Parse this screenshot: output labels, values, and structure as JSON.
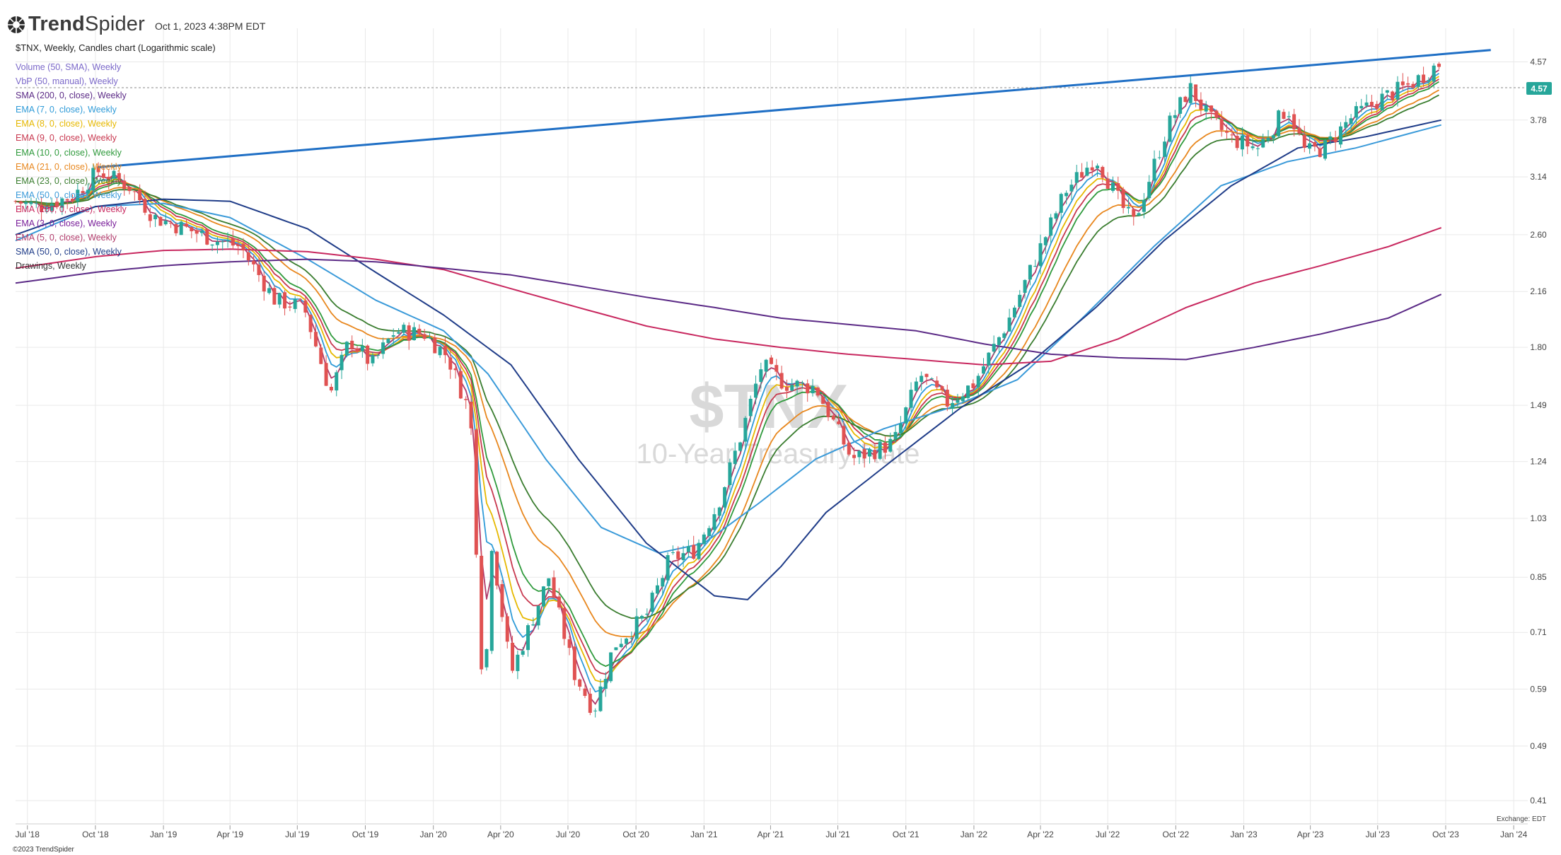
{
  "app": {
    "name_part1": "Trend",
    "name_part2": "Spider",
    "timestamp": "Oct 1, 2023 4:38PM EDT"
  },
  "chart_title": "$TNX, Weekly, Candles chart (Logarithmic scale)",
  "watermark": {
    "symbol": "$TNX",
    "name": "10-Year Treasury Rate"
  },
  "indicators": [
    {
      "label": "Volume (50, SMA), Weekly",
      "color": "#7b68c9"
    },
    {
      "label": "VbP (50, manual), Weekly",
      "color": "#7b68c9"
    },
    {
      "label": "SMA (200, 0, close), Weekly",
      "color": "#5b2a86"
    },
    {
      "label": "EMA (7, 0, close), Weekly",
      "color": "#2f9bd8"
    },
    {
      "label": "EMA (8, 0, close), Weekly",
      "color": "#e6b800"
    },
    {
      "label": "EMA (9, 0, close), Weekly",
      "color": "#c8384f"
    },
    {
      "label": "EMA (10, 0, close), Weekly",
      "color": "#2f9a3c"
    },
    {
      "label": "EMA (21, 0, close), Weekly",
      "color": "#e8871e"
    },
    {
      "label": "EMA (23, 0, close), Weekly",
      "color": "#3a7d2f"
    },
    {
      "label": "EMA (50, 0, close), Weekly",
      "color": "#3a9ad9"
    },
    {
      "label": "EMA (200, 0, close), Weekly",
      "color": "#c8285f"
    },
    {
      "label": "EMA (3, 0, close), Weekly",
      "color": "#7a1f9a"
    },
    {
      "label": "EMA (5, 0, close), Weekly",
      "color": "#b03a6a"
    },
    {
      "label": "SMA (50, 0, close), Weekly",
      "color": "#1f3c88"
    },
    {
      "label": "Drawings, Weekly",
      "color": "#333333"
    }
  ],
  "price_axis": {
    "ticks": [
      "4.57",
      "3.78",
      "3.14",
      "2.60",
      "2.16",
      "1.80",
      "1.49",
      "1.24",
      "1.03",
      "0.85",
      "0.71",
      "0.59",
      "0.49",
      "0.41"
    ]
  },
  "last_price_label": "4.57",
  "time_axis": {
    "ticks": [
      "Jul '18",
      "Oct '18",
      "Jan '19",
      "Apr '19",
      "Jul '19",
      "Oct '19",
      "Jan '20",
      "Apr '20",
      "Jul '20",
      "Oct '20",
      "Jan '21",
      "Apr '21",
      "Jul '21",
      "Oct '21",
      "Jan '22",
      "Apr '22",
      "Jul '22",
      "Oct '22",
      "Jan '23",
      "Apr '23",
      "Jul '23",
      "Oct '23",
      "Jan '24"
    ]
  },
  "exchange_label": "Exchange: EDT",
  "copyright": "©2023 TrendSpider",
  "colors": {
    "up": "#26a69a",
    "down": "#e05252",
    "trendline": "#1f6fc5",
    "last_price_bg": "#26a69a",
    "grid": "#e9e9e9"
  },
  "chart_data": {
    "type": "candlestick",
    "scale": "log",
    "title": "$TNX, Weekly, Candles chart (Logarithmic scale)",
    "ylim": [
      0.38,
      5.1
    ],
    "xlim": [
      "2018-06-15",
      "2024-01-20"
    ],
    "grid": true,
    "price_path": [
      [
        "2018-06-15",
        2.9
      ],
      [
        "2018-07-15",
        2.85
      ],
      [
        "2018-09-01",
        2.95
      ],
      [
        "2018-10-05",
        3.2
      ],
      [
        "2018-11-15",
        3.05
      ],
      [
        "2018-12-20",
        2.75
      ],
      [
        "2019-02-01",
        2.65
      ],
      [
        "2019-03-15",
        2.55
      ],
      [
        "2019-04-15",
        2.5
      ],
      [
        "2019-06-01",
        2.1
      ],
      [
        "2019-07-10",
        2.05
      ],
      [
        "2019-08-15",
        1.55
      ],
      [
        "2019-09-10",
        1.85
      ],
      [
        "2019-10-10",
        1.7
      ],
      [
        "2019-11-10",
        1.9
      ],
      [
        "2019-12-20",
        1.88
      ],
      [
        "2020-01-20",
        1.75
      ],
      [
        "2020-02-20",
        1.45
      ],
      [
        "2020-03-09",
        0.55
      ],
      [
        "2020-03-20",
        0.95
      ],
      [
        "2020-04-15",
        0.62
      ],
      [
        "2020-06-05",
        0.85
      ],
      [
        "2020-07-10",
        0.62
      ],
      [
        "2020-08-05",
        0.55
      ],
      [
        "2020-09-01",
        0.68
      ],
      [
        "2020-10-15",
        0.75
      ],
      [
        "2020-11-15",
        0.9
      ],
      [
        "2020-12-20",
        0.93
      ],
      [
        "2021-01-20",
        1.08
      ],
      [
        "2021-02-20",
        1.35
      ],
      [
        "2021-03-20",
        1.7
      ],
      [
        "2021-04-20",
        1.6
      ],
      [
        "2021-06-01",
        1.58
      ],
      [
        "2021-07-20",
        1.25
      ],
      [
        "2021-08-15",
        1.28
      ],
      [
        "2021-09-15",
        1.32
      ],
      [
        "2021-10-20",
        1.65
      ],
      [
        "2021-11-25",
        1.5
      ],
      [
        "2022-01-01",
        1.6
      ],
      [
        "2022-02-15",
        1.95
      ],
      [
        "2022-03-25",
        2.4
      ],
      [
        "2022-05-05",
        3.0
      ],
      [
        "2022-06-15",
        3.35
      ],
      [
        "2022-07-20",
        2.85
      ],
      [
        "2022-08-05",
        2.7
      ],
      [
        "2022-09-20",
        3.7
      ],
      [
        "2022-10-20",
        4.2
      ],
      [
        "2022-11-15",
        3.8
      ],
      [
        "2022-12-15",
        3.55
      ],
      [
        "2023-01-20",
        3.45
      ],
      [
        "2023-03-01",
        3.95
      ],
      [
        "2023-03-25",
        3.4
      ],
      [
        "2023-04-20",
        3.45
      ],
      [
        "2023-05-25",
        3.8
      ],
      [
        "2023-07-05",
        4.05
      ],
      [
        "2023-08-15",
        4.25
      ],
      [
        "2023-09-25",
        4.57
      ]
    ],
    "trendline": {
      "start": [
        "2018-10-05",
        3.24
      ],
      "end": [
        "2023-12-01",
        4.75
      ]
    },
    "series": [
      {
        "name": "EMA (7, 0, close), Weekly",
        "kind": "fast",
        "lag": 5,
        "color": "#2f9bd8"
      },
      {
        "name": "EMA (8, 0, close), Weekly",
        "kind": "fast",
        "lag": 7,
        "color": "#e6b800"
      },
      {
        "name": "EMA (9, 0, close), Weekly",
        "kind": "fast",
        "lag": 9,
        "color": "#c8384f"
      },
      {
        "name": "EMA (5, 0, close), Weekly",
        "kind": "fast",
        "lag": 3,
        "color": "#b03a6a"
      },
      {
        "name": "EMA (10, 0, close), Weekly",
        "kind": "fast",
        "lag": 11,
        "color": "#2f9a3c"
      },
      {
        "name": "EMA (21, 0, close), Weekly",
        "kind": "slow",
        "lag": 18,
        "color": "#e8871e"
      },
      {
        "name": "EMA (23, 0, close), Weekly",
        "kind": "slow",
        "lag": 23,
        "color": "#3a7d2f"
      },
      {
        "name": "EMA (50, 0, close), Weekly",
        "kind": "ma",
        "color": "#3a9ad9",
        "points": [
          [
            "2018-06-15",
            2.55
          ],
          [
            "2018-10-01",
            2.85
          ],
          [
            "2019-01-01",
            2.88
          ],
          [
            "2019-04-01",
            2.75
          ],
          [
            "2019-07-15",
            2.4
          ],
          [
            "2019-10-15",
            2.1
          ],
          [
            "2020-01-15",
            1.9
          ],
          [
            "2020-03-15",
            1.65
          ],
          [
            "2020-06-01",
            1.25
          ],
          [
            "2020-08-15",
            1.0
          ],
          [
            "2020-11-01",
            0.92
          ],
          [
            "2021-01-01",
            0.95
          ],
          [
            "2021-03-15",
            1.08
          ],
          [
            "2021-06-01",
            1.25
          ],
          [
            "2021-09-01",
            1.38
          ],
          [
            "2021-12-01",
            1.48
          ],
          [
            "2022-03-01",
            1.62
          ],
          [
            "2022-06-01",
            2.0
          ],
          [
            "2022-09-01",
            2.5
          ],
          [
            "2022-12-01",
            3.05
          ],
          [
            "2023-03-01",
            3.3
          ],
          [
            "2023-06-01",
            3.45
          ],
          [
            "2023-09-25",
            3.72
          ]
        ]
      },
      {
        "name": "SMA (50, 0, close), Weekly",
        "kind": "ma",
        "color": "#1f3c88",
        "points": [
          [
            "2018-06-15",
            2.6
          ],
          [
            "2018-10-01",
            2.85
          ],
          [
            "2019-01-01",
            2.92
          ],
          [
            "2019-04-01",
            2.9
          ],
          [
            "2019-07-15",
            2.65
          ],
          [
            "2019-10-15",
            2.3
          ],
          [
            "2020-01-15",
            2.0
          ],
          [
            "2020-04-15",
            1.7
          ],
          [
            "2020-07-15",
            1.25
          ],
          [
            "2020-10-15",
            0.95
          ],
          [
            "2021-01-15",
            0.8
          ],
          [
            "2021-03-01",
            0.79
          ],
          [
            "2021-04-15",
            0.88
          ],
          [
            "2021-06-15",
            1.05
          ],
          [
            "2021-09-15",
            1.25
          ],
          [
            "2021-12-15",
            1.48
          ],
          [
            "2022-03-15",
            1.7
          ],
          [
            "2022-06-15",
            2.05
          ],
          [
            "2022-09-15",
            2.55
          ],
          [
            "2022-12-15",
            3.05
          ],
          [
            "2023-03-15",
            3.45
          ],
          [
            "2023-06-15",
            3.58
          ],
          [
            "2023-09-25",
            3.78
          ]
        ]
      },
      {
        "name": "EMA (200, 0, close), Weekly",
        "kind": "ma",
        "color": "#c8285f",
        "points": [
          [
            "2018-06-15",
            2.33
          ],
          [
            "2018-10-01",
            2.42
          ],
          [
            "2019-01-01",
            2.47
          ],
          [
            "2019-04-01",
            2.48
          ],
          [
            "2019-07-15",
            2.46
          ],
          [
            "2019-10-15",
            2.4
          ],
          [
            "2020-01-15",
            2.32
          ],
          [
            "2020-04-15",
            2.18
          ],
          [
            "2020-07-15",
            2.05
          ],
          [
            "2020-10-15",
            1.93
          ],
          [
            "2021-01-15",
            1.85
          ],
          [
            "2021-04-15",
            1.8
          ],
          [
            "2021-07-15",
            1.76
          ],
          [
            "2021-10-15",
            1.73
          ],
          [
            "2022-01-15",
            1.7
          ],
          [
            "2022-04-15",
            1.72
          ],
          [
            "2022-07-15",
            1.85
          ],
          [
            "2022-10-15",
            2.05
          ],
          [
            "2023-01-15",
            2.22
          ],
          [
            "2023-04-15",
            2.35
          ],
          [
            "2023-07-15",
            2.5
          ],
          [
            "2023-09-25",
            2.66
          ]
        ]
      },
      {
        "name": "SMA (200, 0, close), Weekly",
        "kind": "ma",
        "color": "#5b2a86",
        "points": [
          [
            "2018-06-15",
            2.22
          ],
          [
            "2018-10-01",
            2.3
          ],
          [
            "2019-01-01",
            2.35
          ],
          [
            "2019-04-01",
            2.38
          ],
          [
            "2019-07-15",
            2.4
          ],
          [
            "2019-10-15",
            2.38
          ],
          [
            "2020-01-15",
            2.33
          ],
          [
            "2020-04-15",
            2.28
          ],
          [
            "2020-07-15",
            2.2
          ],
          [
            "2020-10-15",
            2.12
          ],
          [
            "2021-01-15",
            2.05
          ],
          [
            "2021-04-15",
            1.98
          ],
          [
            "2021-07-15",
            1.94
          ],
          [
            "2021-10-15",
            1.9
          ],
          [
            "2022-01-15",
            1.82
          ],
          [
            "2022-04-15",
            1.76
          ],
          [
            "2022-07-15",
            1.74
          ],
          [
            "2022-10-15",
            1.73
          ],
          [
            "2023-01-15",
            1.8
          ],
          [
            "2023-04-15",
            1.88
          ],
          [
            "2023-07-15",
            1.98
          ],
          [
            "2023-09-25",
            2.14
          ]
        ]
      }
    ]
  }
}
